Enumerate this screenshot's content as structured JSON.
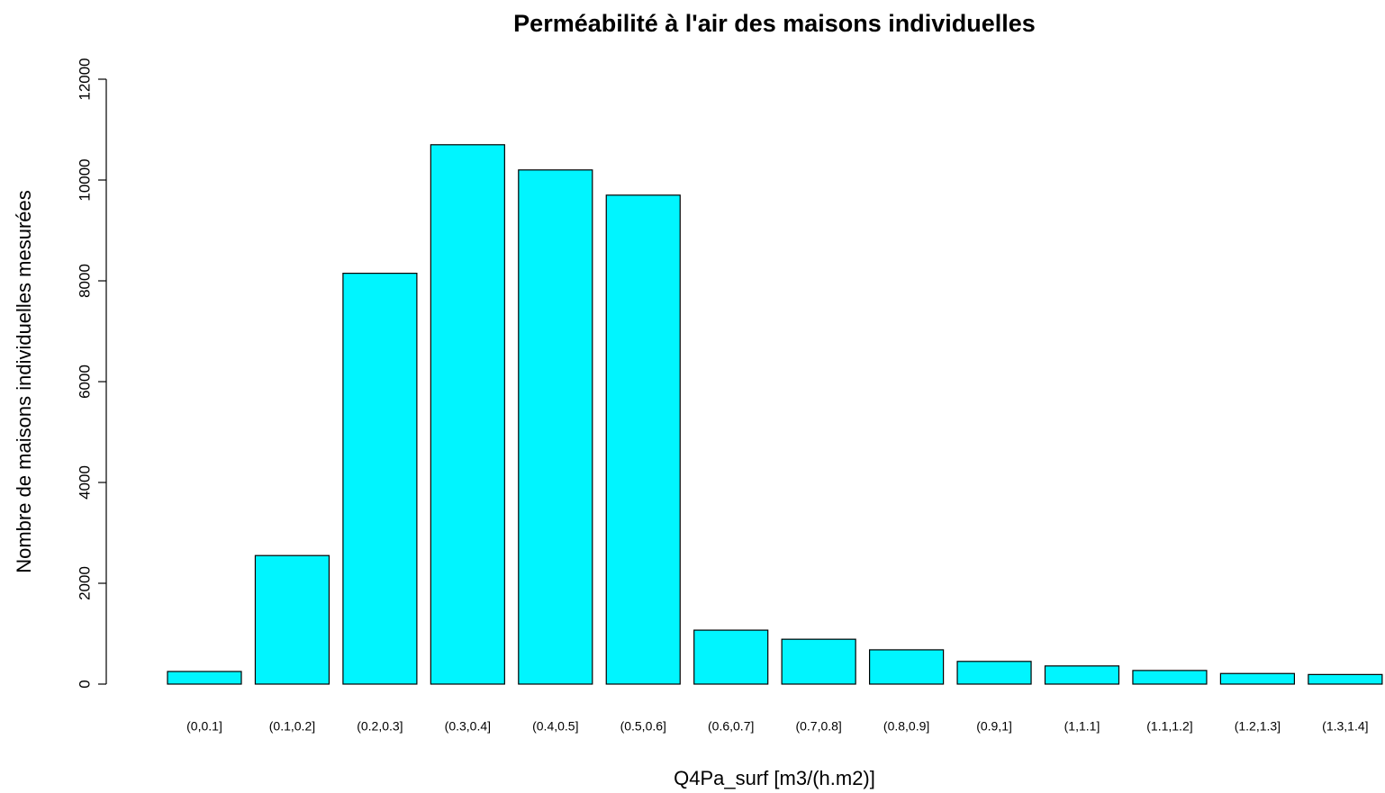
{
  "chart_data": {
    "type": "bar",
    "title": "Perméabilité à l'air des maisons individuelles",
    "x_label": "Q4Pa_surf [m3/(h.m2)]",
    "y_label": "Nombre de maisons individuelles mesurées",
    "categories": [
      "(0,0.1]",
      "(0.1,0.2]",
      "(0.2,0.3]",
      "(0.3,0.4]",
      "(0.4,0.5]",
      "(0.5,0.6]",
      "(0.6,0.7]",
      "(0.7,0.8]",
      "(0.8,0.9]",
      "(0.9,1]",
      "(1,1.1]",
      "(1.1,1.2]",
      "(1.2,1.3]",
      "(1.3,1.4]"
    ],
    "values": [
      250,
      2550,
      8150,
      10700,
      10200,
      9700,
      1070,
      890,
      680,
      450,
      360,
      270,
      210,
      190
    ],
    "color": "#00f5ff",
    "ylim": [
      0,
      12000
    ],
    "yticks": [
      0,
      2000,
      4000,
      6000,
      8000,
      10000,
      12000
    ],
    "grid": false
  }
}
